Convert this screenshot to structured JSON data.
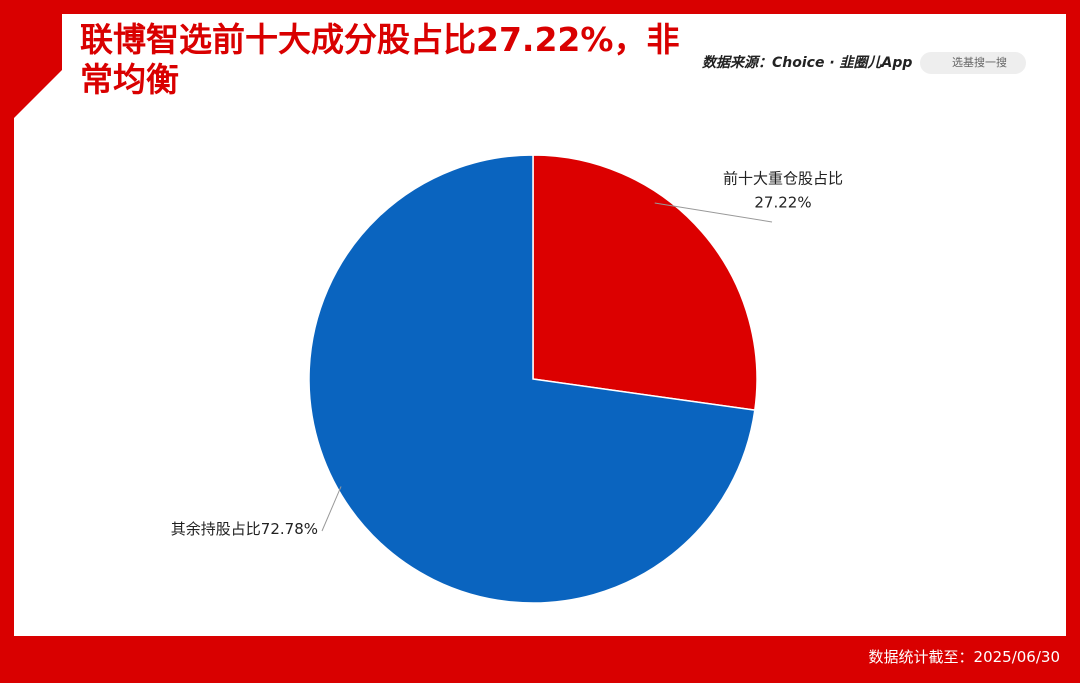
{
  "chart_data": {
    "type": "pie",
    "title": "联博智选前十大成分股占比27.22%，非常均衡",
    "source": "数据来源：Choice · 韭圈儿App",
    "search_placeholder": "选基搜一搜",
    "footnote": "数据统计截至：2025/06/30",
    "categories": [
      "前十大重仓股占比",
      "其余持股占比"
    ],
    "values": [
      27.22,
      72.78
    ],
    "value_labels": [
      "27.22%",
      "72.78%"
    ],
    "colors": [
      "#dc0000",
      "#0a64bf"
    ]
  }
}
